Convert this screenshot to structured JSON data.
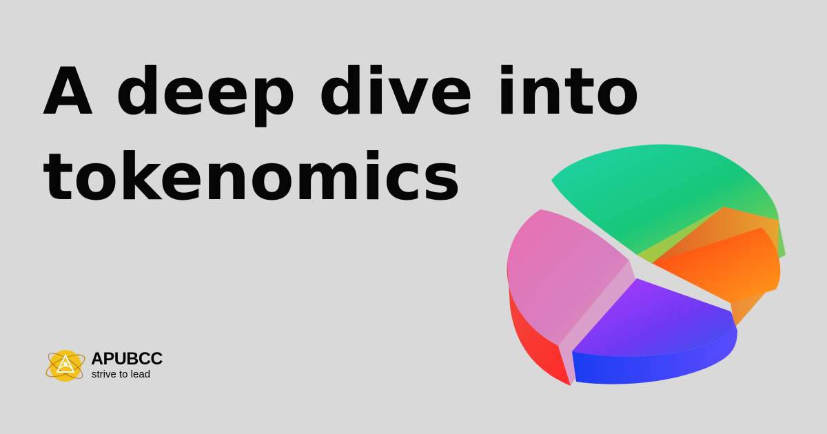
{
  "headline": {
    "line1": "A deep dive into",
    "line2": "tokenomics"
  },
  "brand": {
    "name": "APUBCC",
    "tagline": "strive to lead",
    "logo_color": "#f2c21b"
  },
  "illustration": {
    "icon": "3d-pie-chart-icon",
    "slice_colors": [
      "#15cf9a",
      "#f26a12",
      "#7a2cf0",
      "#e56fa0"
    ]
  },
  "colors": {
    "background": "#d9d9d9",
    "text": "#050505"
  }
}
